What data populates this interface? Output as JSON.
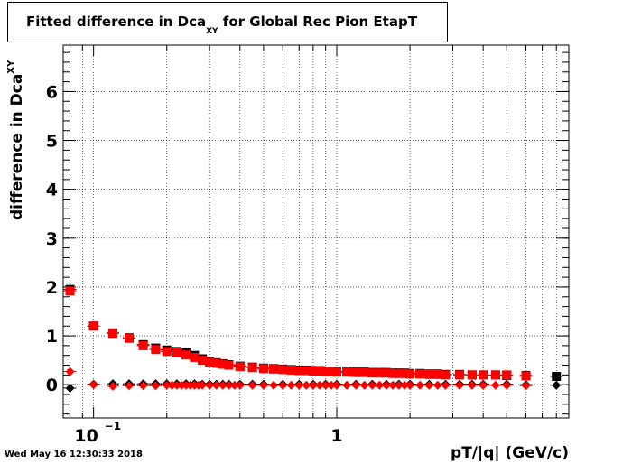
{
  "title": {
    "main": "Fitted difference in Dca",
    "sub": "XY",
    "rest": " for Global Rec Pion EtapT"
  },
  "ylabel": {
    "main": "difference in Dca",
    "sub": "XY"
  },
  "xlabel": "pT/|q| (GeV/c)",
  "timestamp": "Wed May 16 12:30:33 2018",
  "colors": {
    "series_a": "#000000",
    "series_b": "#ff0000",
    "axis": "#000000",
    "grid": "#000000"
  },
  "chart_data": {
    "type": "scatter",
    "xscale": "log",
    "xlim": [
      0.075,
      9.0
    ],
    "ylim": [
      -0.68,
      6.95
    ],
    "grid": true,
    "xticks": [
      {
        "value": 0.1,
        "base": "10",
        "exp": "−1"
      },
      {
        "value": 1,
        "base": "1",
        "exp": ""
      }
    ],
    "yticks": [
      0,
      1,
      2,
      3,
      4,
      5,
      6
    ],
    "series": [
      {
        "marker": "square",
        "color": "#000000",
        "x": [
          0.08,
          0.1,
          0.12,
          0.14,
          0.16,
          0.18,
          0.2,
          0.22,
          0.24,
          0.26,
          0.28,
          0.3,
          0.32,
          0.34,
          0.36,
          0.4,
          0.45,
          0.5,
          0.55,
          0.6,
          0.65,
          0.7,
          0.75,
          0.8,
          0.85,
          0.9,
          0.95,
          1.0,
          1.1,
          1.2,
          1.3,
          1.4,
          1.5,
          1.6,
          1.7,
          1.8,
          1.9,
          2.0,
          2.2,
          2.4,
          2.6,
          2.8,
          3.2,
          3.6,
          4.0,
          4.5,
          5.0,
          6.0,
          8.0
        ],
        "y": [
          1.95,
          1.2,
          1.06,
          0.96,
          0.82,
          0.75,
          0.71,
          0.68,
          0.65,
          0.6,
          0.53,
          0.48,
          0.45,
          0.43,
          0.41,
          0.38,
          0.36,
          0.34,
          0.33,
          0.32,
          0.31,
          0.3,
          0.3,
          0.29,
          0.29,
          0.28,
          0.28,
          0.27,
          0.27,
          0.26,
          0.26,
          0.25,
          0.25,
          0.25,
          0.24,
          0.24,
          0.24,
          0.23,
          0.23,
          0.22,
          0.22,
          0.21,
          0.21,
          0.2,
          0.2,
          0.2,
          0.19,
          0.19,
          0.17
        ]
      },
      {
        "marker": "square",
        "color": "#ff0000",
        "x": [
          0.08,
          0.1,
          0.12,
          0.14,
          0.16,
          0.18,
          0.2,
          0.22,
          0.24,
          0.26,
          0.28,
          0.3,
          0.32,
          0.34,
          0.36,
          0.4,
          0.45,
          0.5,
          0.55,
          0.6,
          0.65,
          0.7,
          0.75,
          0.8,
          0.85,
          0.9,
          0.95,
          1.0,
          1.1,
          1.2,
          1.3,
          1.4,
          1.5,
          1.6,
          1.7,
          1.8,
          1.9,
          2.0,
          2.2,
          2.4,
          2.6,
          2.8,
          3.2,
          3.6,
          4.0,
          4.5,
          5.0,
          6.0
        ],
        "y": [
          1.92,
          1.2,
          1.05,
          0.95,
          0.8,
          0.72,
          0.68,
          0.65,
          0.61,
          0.56,
          0.5,
          0.46,
          0.44,
          0.42,
          0.4,
          0.37,
          0.35,
          0.33,
          0.32,
          0.31,
          0.3,
          0.29,
          0.29,
          0.28,
          0.28,
          0.27,
          0.27,
          0.26,
          0.26,
          0.25,
          0.25,
          0.24,
          0.24,
          0.24,
          0.23,
          0.23,
          0.23,
          0.22,
          0.22,
          0.21,
          0.21,
          0.2,
          0.2,
          0.2,
          0.2,
          0.2,
          0.2,
          0.18
        ]
      },
      {
        "marker": "diamond",
        "color": "#000000",
        "x": [
          0.08,
          0.1,
          0.12,
          0.14,
          0.16,
          0.18,
          0.2,
          0.22,
          0.24,
          0.26,
          0.28,
          0.3,
          0.32,
          0.34,
          0.36,
          0.4,
          0.45,
          0.5,
          0.6,
          0.7,
          0.8,
          0.9,
          1.0,
          1.2,
          1.4,
          1.6,
          1.8,
          2.0,
          2.4,
          2.8,
          3.2,
          3.6,
          4.0,
          5.0,
          6.0,
          8.0
        ],
        "y": [
          -0.07,
          0.01,
          0.02,
          0.02,
          0.02,
          0.02,
          0.02,
          0.02,
          0.02,
          0.02,
          0.01,
          0.01,
          0.01,
          0.01,
          0.01,
          0.01,
          0.01,
          0.01,
          0.01,
          0.01,
          0.01,
          0.01,
          0.01,
          0.01,
          0.01,
          0.01,
          0.01,
          0.01,
          0.01,
          0.01,
          0.01,
          0.01,
          0.01,
          0.01,
          0.0,
          -0.01
        ]
      },
      {
        "marker": "diamond",
        "color": "#ff0000",
        "x": [
          0.08,
          0.1,
          0.12,
          0.14,
          0.16,
          0.18,
          0.2,
          0.21,
          0.22,
          0.23,
          0.24,
          0.25,
          0.26,
          0.27,
          0.28,
          0.3,
          0.32,
          0.34,
          0.36,
          0.38,
          0.4,
          0.45,
          0.5,
          0.55,
          0.6,
          0.65,
          0.7,
          0.75,
          0.8,
          0.85,
          0.9,
          0.95,
          1.0,
          1.1,
          1.2,
          1.3,
          1.4,
          1.5,
          1.6,
          1.7,
          1.8,
          1.9,
          2.0,
          2.2,
          2.4,
          2.6,
          2.8,
          3.2,
          3.6,
          4.0,
          4.5,
          5.0,
          6.0
        ],
        "y": [
          0.27,
          0.0,
          -0.03,
          -0.02,
          -0.02,
          -0.02,
          -0.01,
          -0.01,
          -0.01,
          -0.01,
          -0.01,
          -0.01,
          -0.01,
          -0.01,
          -0.01,
          -0.01,
          -0.01,
          -0.01,
          -0.01,
          -0.01,
          -0.01,
          -0.01,
          -0.01,
          -0.01,
          -0.01,
          -0.01,
          -0.01,
          -0.01,
          -0.01,
          -0.01,
          -0.01,
          -0.01,
          -0.01,
          -0.01,
          -0.01,
          -0.01,
          -0.01,
          -0.01,
          -0.01,
          -0.01,
          -0.01,
          -0.01,
          -0.01,
          -0.01,
          -0.01,
          -0.01,
          -0.01,
          -0.01,
          -0.01,
          -0.01,
          -0.01,
          -0.01,
          -0.02
        ]
      }
    ]
  }
}
